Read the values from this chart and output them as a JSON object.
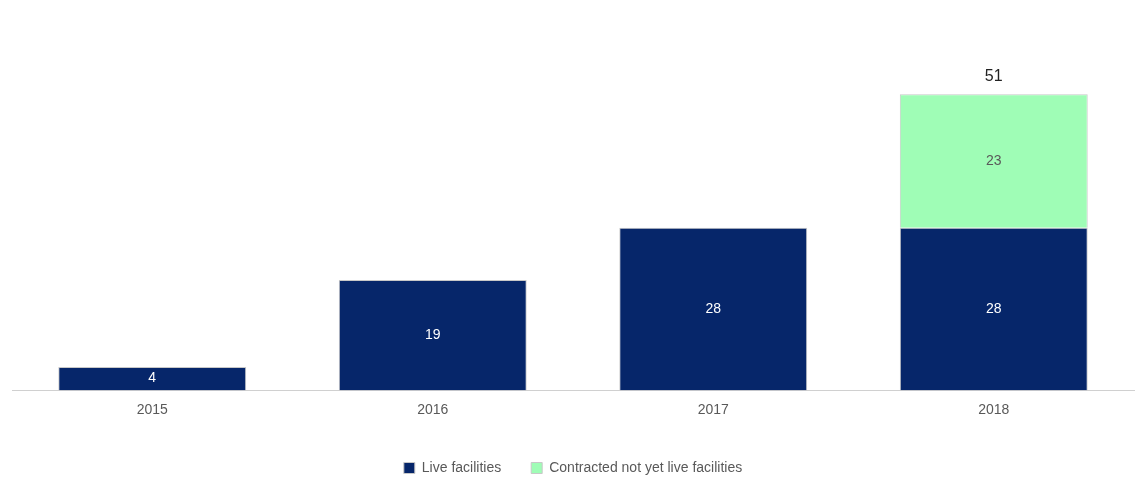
{
  "chart_data": {
    "type": "bar",
    "stacked": true,
    "categories": [
      "2015",
      "2016",
      "2017",
      "2018"
    ],
    "series": [
      {
        "name": "Live facilities",
        "color": "#06266a",
        "values": [
          4,
          19,
          28,
          28
        ]
      },
      {
        "name": "Contracted not yet live facilities",
        "color": "#9ffdb6",
        "values": [
          null,
          null,
          null,
          23
        ]
      }
    ],
    "data_labels": true,
    "totals": [
      null,
      null,
      null,
      "51"
    ],
    "legend": "bottom",
    "grid": false
  }
}
